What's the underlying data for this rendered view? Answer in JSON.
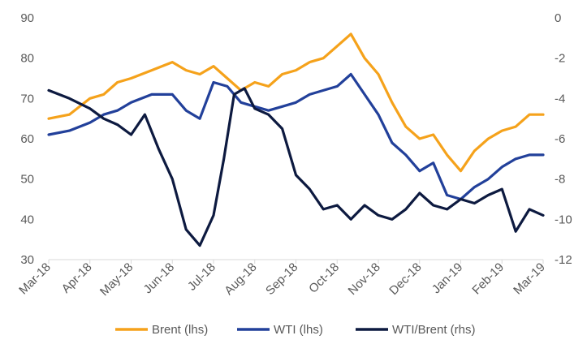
{
  "chart_data": {
    "type": "line",
    "title": "",
    "xlabel": "",
    "ylabel": "",
    "x_ticks": [
      "Mar-18",
      "Apr-18",
      "May-18",
      "Jun-18",
      "Jul-18",
      "Aug-18",
      "Sep-18",
      "Oct-18",
      "Nov-18",
      "Dec-18",
      "Jan-19",
      "Feb-19",
      "Mar-19"
    ],
    "x_range": [
      "Mar-18",
      "Mar-19"
    ],
    "y_left": {
      "ylim": [
        30,
        90
      ],
      "ticks": [
        "30",
        "40",
        "50",
        "60",
        "70",
        "80",
        "90"
      ]
    },
    "y_right": {
      "ylim": [
        -12,
        0
      ],
      "ticks": [
        "-12",
        "-10",
        "-8",
        "-6",
        "-4",
        "-2",
        "0"
      ]
    },
    "grid": false,
    "legend": {
      "position": "bottom"
    },
    "series": [
      {
        "name": "Brent (lhs)",
        "axis": "left",
        "color": "#F5A21B",
        "x": [
          "Mar-18",
          "Mar-18",
          "Apr-18",
          "Apr-18",
          "Apr-18",
          "May-18",
          "May-18",
          "Jun-18",
          "Jun-18",
          "Jun-18",
          "Jul-18",
          "Jul-18",
          "Jul-18",
          "Aug-18",
          "Aug-18",
          "Aug-18",
          "Sep-18",
          "Sep-18",
          "Sep-18",
          "Oct-18",
          "Oct-18",
          "Oct-18",
          "Nov-18",
          "Nov-18",
          "Nov-18",
          "Dec-18",
          "Dec-18",
          "Dec-18",
          "Jan-19",
          "Jan-19",
          "Jan-19",
          "Feb-19",
          "Feb-19",
          "Feb-19",
          "Mar-19"
        ],
        "values": [
          65,
          66,
          70,
          71,
          74,
          75,
          77,
          79,
          77,
          76,
          78,
          75,
          72,
          74,
          73,
          76,
          77,
          79,
          80,
          83,
          86,
          80,
          76,
          69,
          63,
          60,
          61,
          56,
          52,
          57,
          60,
          62,
          63,
          66,
          66
        ]
      },
      {
        "name": "WTI (lhs)",
        "axis": "left",
        "color": "#22409A",
        "x": [
          "Mar-18",
          "Mar-18",
          "Apr-18",
          "Apr-18",
          "Apr-18",
          "May-18",
          "May-18",
          "Jun-18",
          "Jun-18",
          "Jun-18",
          "Jul-18",
          "Jul-18",
          "Jul-18",
          "Aug-18",
          "Aug-18",
          "Aug-18",
          "Sep-18",
          "Sep-18",
          "Sep-18",
          "Oct-18",
          "Oct-18",
          "Oct-18",
          "Nov-18",
          "Nov-18",
          "Nov-18",
          "Dec-18",
          "Dec-18",
          "Dec-18",
          "Jan-19",
          "Jan-19",
          "Jan-19",
          "Feb-19",
          "Feb-19",
          "Feb-19",
          "Mar-19"
        ],
        "values": [
          61,
          62,
          64,
          66,
          67,
          69,
          71,
          71,
          67,
          65,
          74,
          73,
          69,
          68,
          67,
          68,
          69,
          71,
          72,
          73,
          76,
          71,
          66,
          59,
          56,
          52,
          54,
          46,
          45,
          48,
          50,
          53,
          55,
          56,
          56
        ]
      },
      {
        "name": "WTI/Brent (rhs)",
        "axis": "right",
        "color": "#0D1A40",
        "x": [
          "Mar-18",
          "Mar-18",
          "Apr-18",
          "Apr-18",
          "Apr-18",
          "May-18",
          "May-18",
          "May-18",
          "Jun-18",
          "Jun-18",
          "Jun-18",
          "Jul-18",
          "Jul-18",
          "Jul-18",
          "Jul-18",
          "Aug-18",
          "Aug-18",
          "Aug-18",
          "Sep-18",
          "Sep-18",
          "Sep-18",
          "Oct-18",
          "Oct-18",
          "Oct-18",
          "Nov-18",
          "Nov-18",
          "Nov-18",
          "Dec-18",
          "Dec-18",
          "Dec-18",
          "Jan-19",
          "Jan-19",
          "Jan-19",
          "Feb-19",
          "Feb-19",
          "Feb-19",
          "Mar-19"
        ],
        "values": [
          -3.6,
          -4.0,
          -4.5,
          -5.0,
          -5.3,
          -5.8,
          -4.8,
          -6.5,
          -8.0,
          -10.5,
          -11.3,
          -9.8,
          -7.0,
          -3.8,
          -3.5,
          -4.5,
          -4.8,
          -5.5,
          -7.8,
          -8.5,
          -9.5,
          -9.3,
          -10.0,
          -9.3,
          -9.8,
          -10.0,
          -9.5,
          -8.7,
          -9.3,
          -9.5,
          -9.0,
          -9.2,
          -8.8,
          -8.5,
          -10.6,
          -9.5,
          -9.8
        ]
      }
    ]
  }
}
